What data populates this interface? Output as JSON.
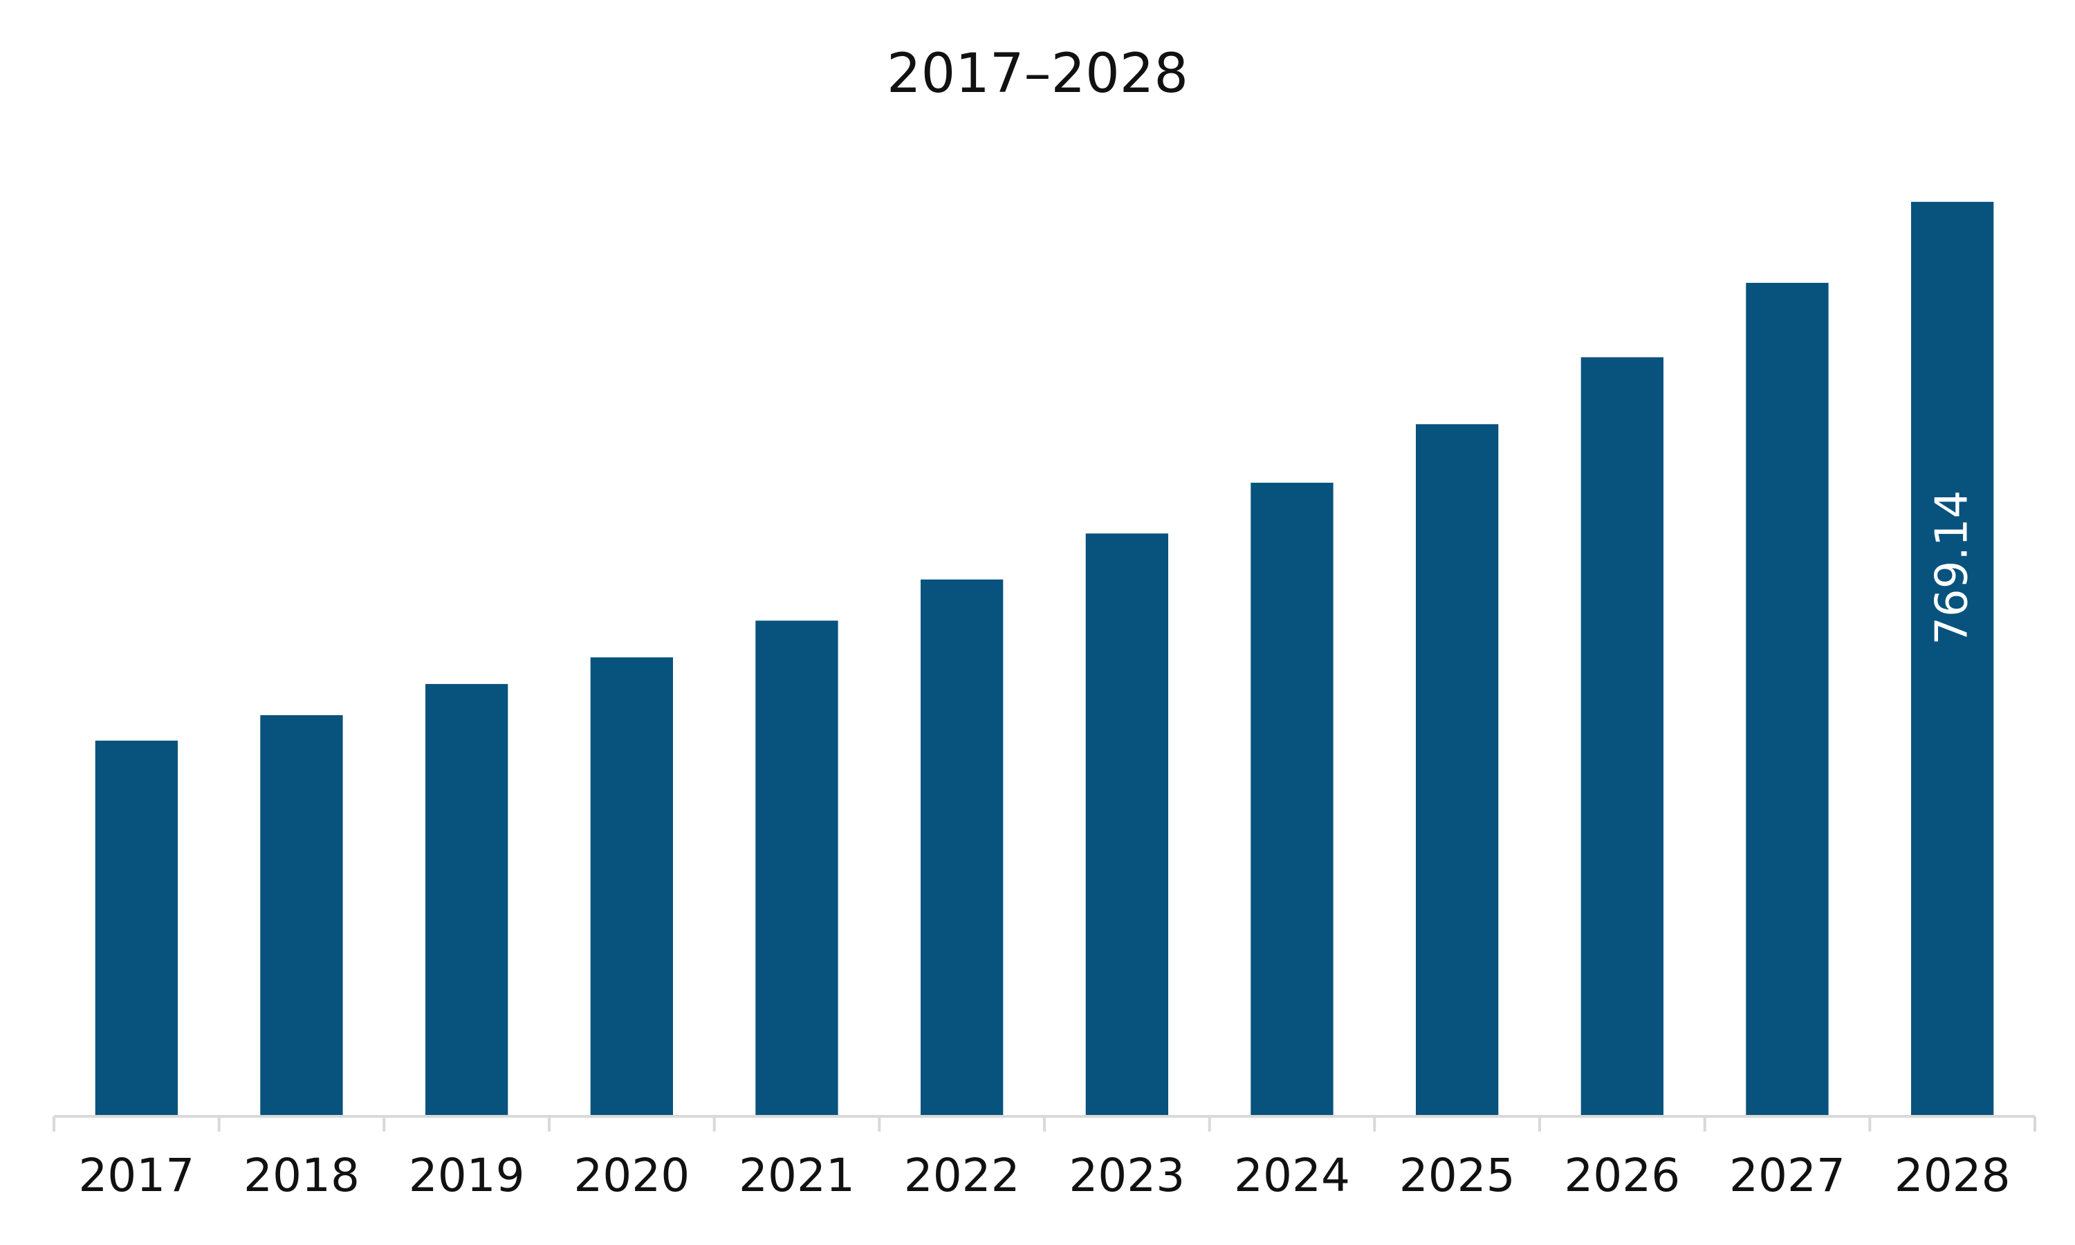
{
  "chart_data": {
    "type": "bar",
    "title": "2017–2028",
    "categories": [
      "2017",
      "2018",
      "2019",
      "2020",
      "2021",
      "2022",
      "2023",
      "2024",
      "2025",
      "2026",
      "2027",
      "2028"
    ],
    "series": [
      {
        "values": [
          316.0,
          337.4,
          363.6,
          386.0,
          416.9,
          451.5,
          490.2,
          532.9,
          582.1,
          638.4,
          701.0,
          769.14
        ],
        "color": "#08527e"
      }
    ],
    "data_labels": [
      {
        "category": "2028",
        "text": "769.14"
      }
    ],
    "ylim": [
      0,
      776
    ],
    "grid": false,
    "legend": "none",
    "axis_color": "#d9d9d9"
  }
}
